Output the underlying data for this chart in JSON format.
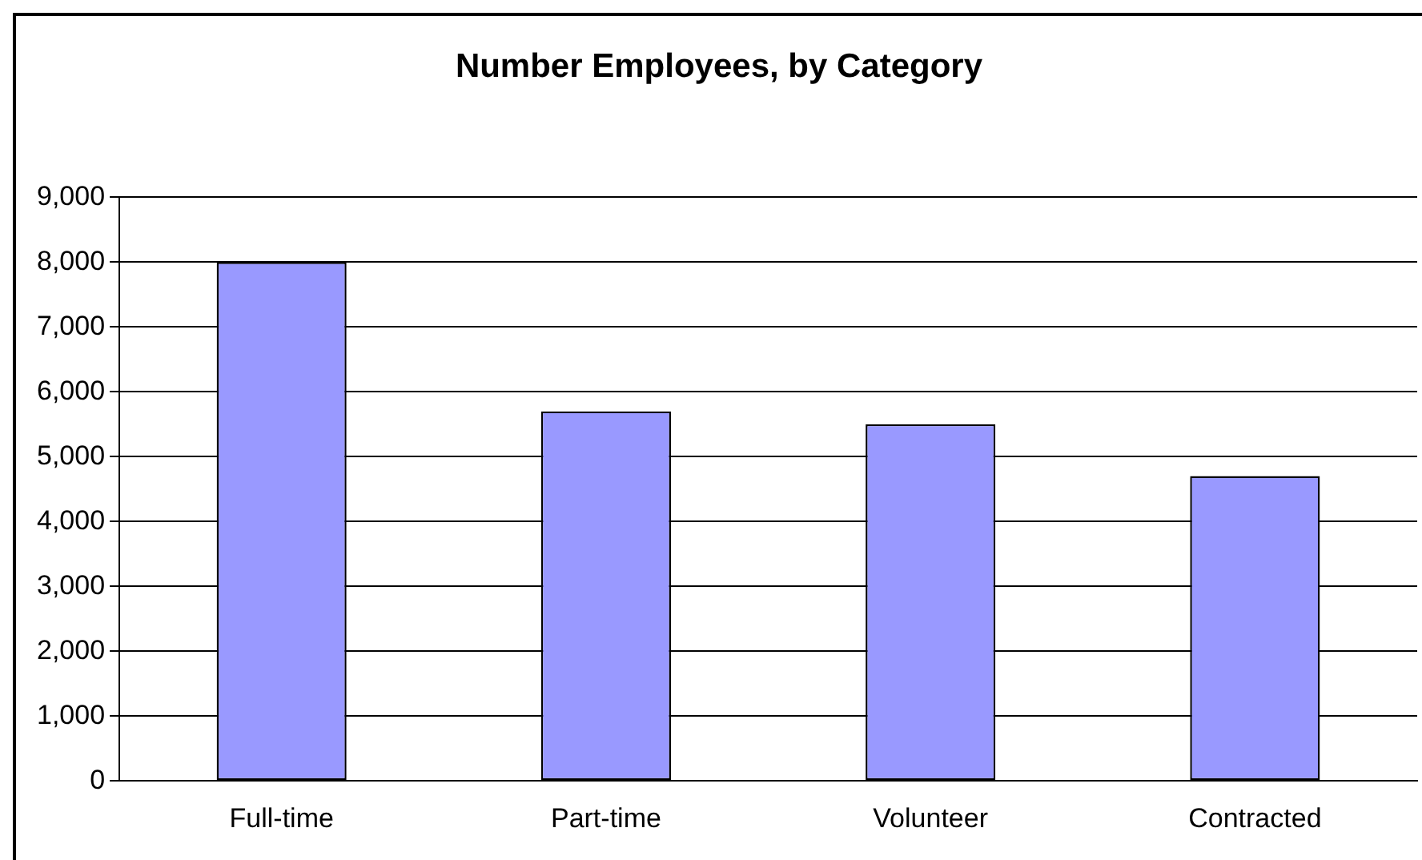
{
  "chart_data": {
    "type": "bar",
    "title": "Number Employees, by Category",
    "categories": [
      "Full-time",
      "Part-time",
      "Volunteer",
      "Contracted"
    ],
    "values": [
      8000,
      5700,
      5500,
      4700
    ],
    "color": "#9999ff",
    "ylim": [
      0,
      9000
    ],
    "yticks": [
      0,
      {
        "value": 1000,
        "label": "1,000"
      },
      {
        "value": 2000,
        "label": "2,000"
      },
      {
        "value": 3000,
        "label": "3,000"
      },
      {
        "value": 4000,
        "label": "4,000"
      },
      {
        "value": 5000,
        "label": "5,000"
      },
      {
        "value": 6000,
        "label": "6,000"
      },
      {
        "value": 7000,
        "label": "7,000"
      },
      {
        "value": 8000,
        "label": "8,000"
      },
      {
        "value": 9000,
        "label": "9,000"
      }
    ],
    "grid": "y",
    "legend": false
  }
}
